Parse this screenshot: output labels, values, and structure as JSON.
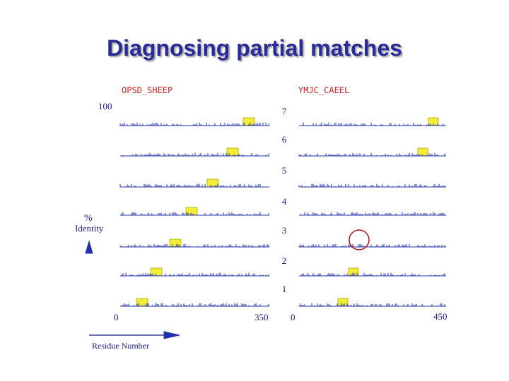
{
  "title": "Diagnosing partial matches",
  "panels": [
    {
      "protein": "OPSD_SHEEP",
      "x_start": "0",
      "x_end": "350"
    },
    {
      "protein": "YMJC_CAEEL",
      "x_end": "450",
      "x_start": "0"
    }
  ],
  "y_label": {
    "top": "100",
    "symbol": "%",
    "word": "Identity"
  },
  "x_label": "Residue Number",
  "row_numbers": [
    "7",
    "6",
    "5",
    "4",
    "3",
    "2",
    "1"
  ],
  "colors": {
    "title": "#2a2a9a",
    "trace": "#2233aa",
    "highlight": "#f2ec3a",
    "circle": "#aa1111",
    "protein": "#cc2222"
  }
}
